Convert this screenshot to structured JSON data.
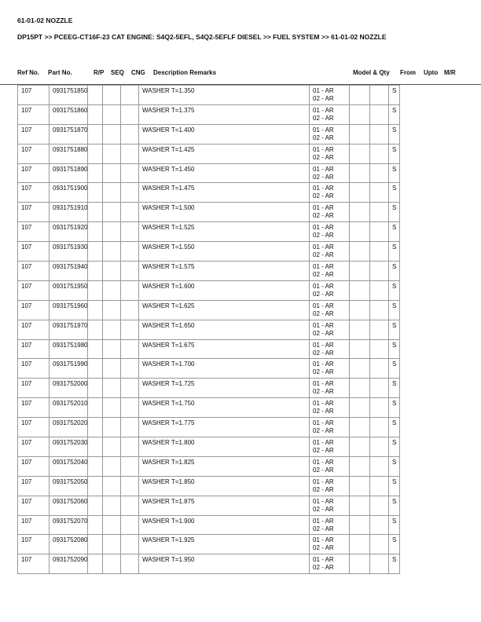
{
  "title": "61-01-02 NOZZLE",
  "breadcrumb": "DP15PT >> PCEEG-CT16F-23 CAT ENGINE: S4Q2-5EFL, S4Q2-5EFLF DIESEL >> FUEL SYSTEM >> 61-01-02 NOZZLE",
  "columns": [
    "Ref No.",
    "Part No.",
    "R/P",
    "SEQ",
    "CNG",
    "Description Remarks",
    "Model & Qty",
    "From",
    "Upto",
    "M/R"
  ],
  "rows": [
    [
      "107",
      "0931751850",
      "WASHER T=1.350"
    ],
    [
      "107",
      "0931751860",
      "WASHER T=1.375"
    ],
    [
      "107",
      "0931751870",
      "WASHER T=1.400"
    ],
    [
      "107",
      "0931751880",
      "WASHER T=1.425"
    ],
    [
      "107",
      "0931751890",
      "WASHER T=1.450"
    ],
    [
      "107",
      "0931751900",
      "WASHER T=1.475"
    ],
    [
      "107",
      "0931751910",
      "WASHER T=1.500"
    ],
    [
      "107",
      "0931751920",
      "WASHER T=1.525"
    ],
    [
      "107",
      "0931751930",
      "WASHER T=1.550"
    ],
    [
      "107",
      "0931751940",
      "WASHER T=1.575"
    ],
    [
      "107",
      "0931751950",
      "WASHER T=1.600"
    ],
    [
      "107",
      "0931751960",
      "WASHER T=1.625"
    ],
    [
      "107",
      "0931751970",
      "WASHER T=1.650"
    ],
    [
      "107",
      "0931751980",
      "WASHER T=1.675"
    ],
    [
      "107",
      "0931751990",
      "WASHER T=1.700"
    ],
    [
      "107",
      "0931752000",
      "WASHER T=1.725"
    ],
    [
      "107",
      "0931752010",
      "WASHER T=1.750"
    ],
    [
      "107",
      "0931752020",
      "WASHER T=1.775"
    ],
    [
      "107",
      "0931752030",
      "WASHER T=1.800"
    ],
    [
      "107",
      "0931752040",
      "WASHER T=1.825"
    ],
    [
      "107",
      "0931752050",
      "WASHER T=1.850"
    ],
    [
      "107",
      "0931752060",
      "WASHER T=1.875"
    ],
    [
      "107",
      "0931752070",
      "WASHER T=1.900"
    ],
    [
      "107",
      "0931752080",
      "WASHER T=1.925"
    ],
    [
      "107",
      "0931752090",
      "WASHER T=1.950"
    ]
  ],
  "model_qty": [
    "01 - AR",
    "02 - AR"
  ],
  "mr": "S"
}
